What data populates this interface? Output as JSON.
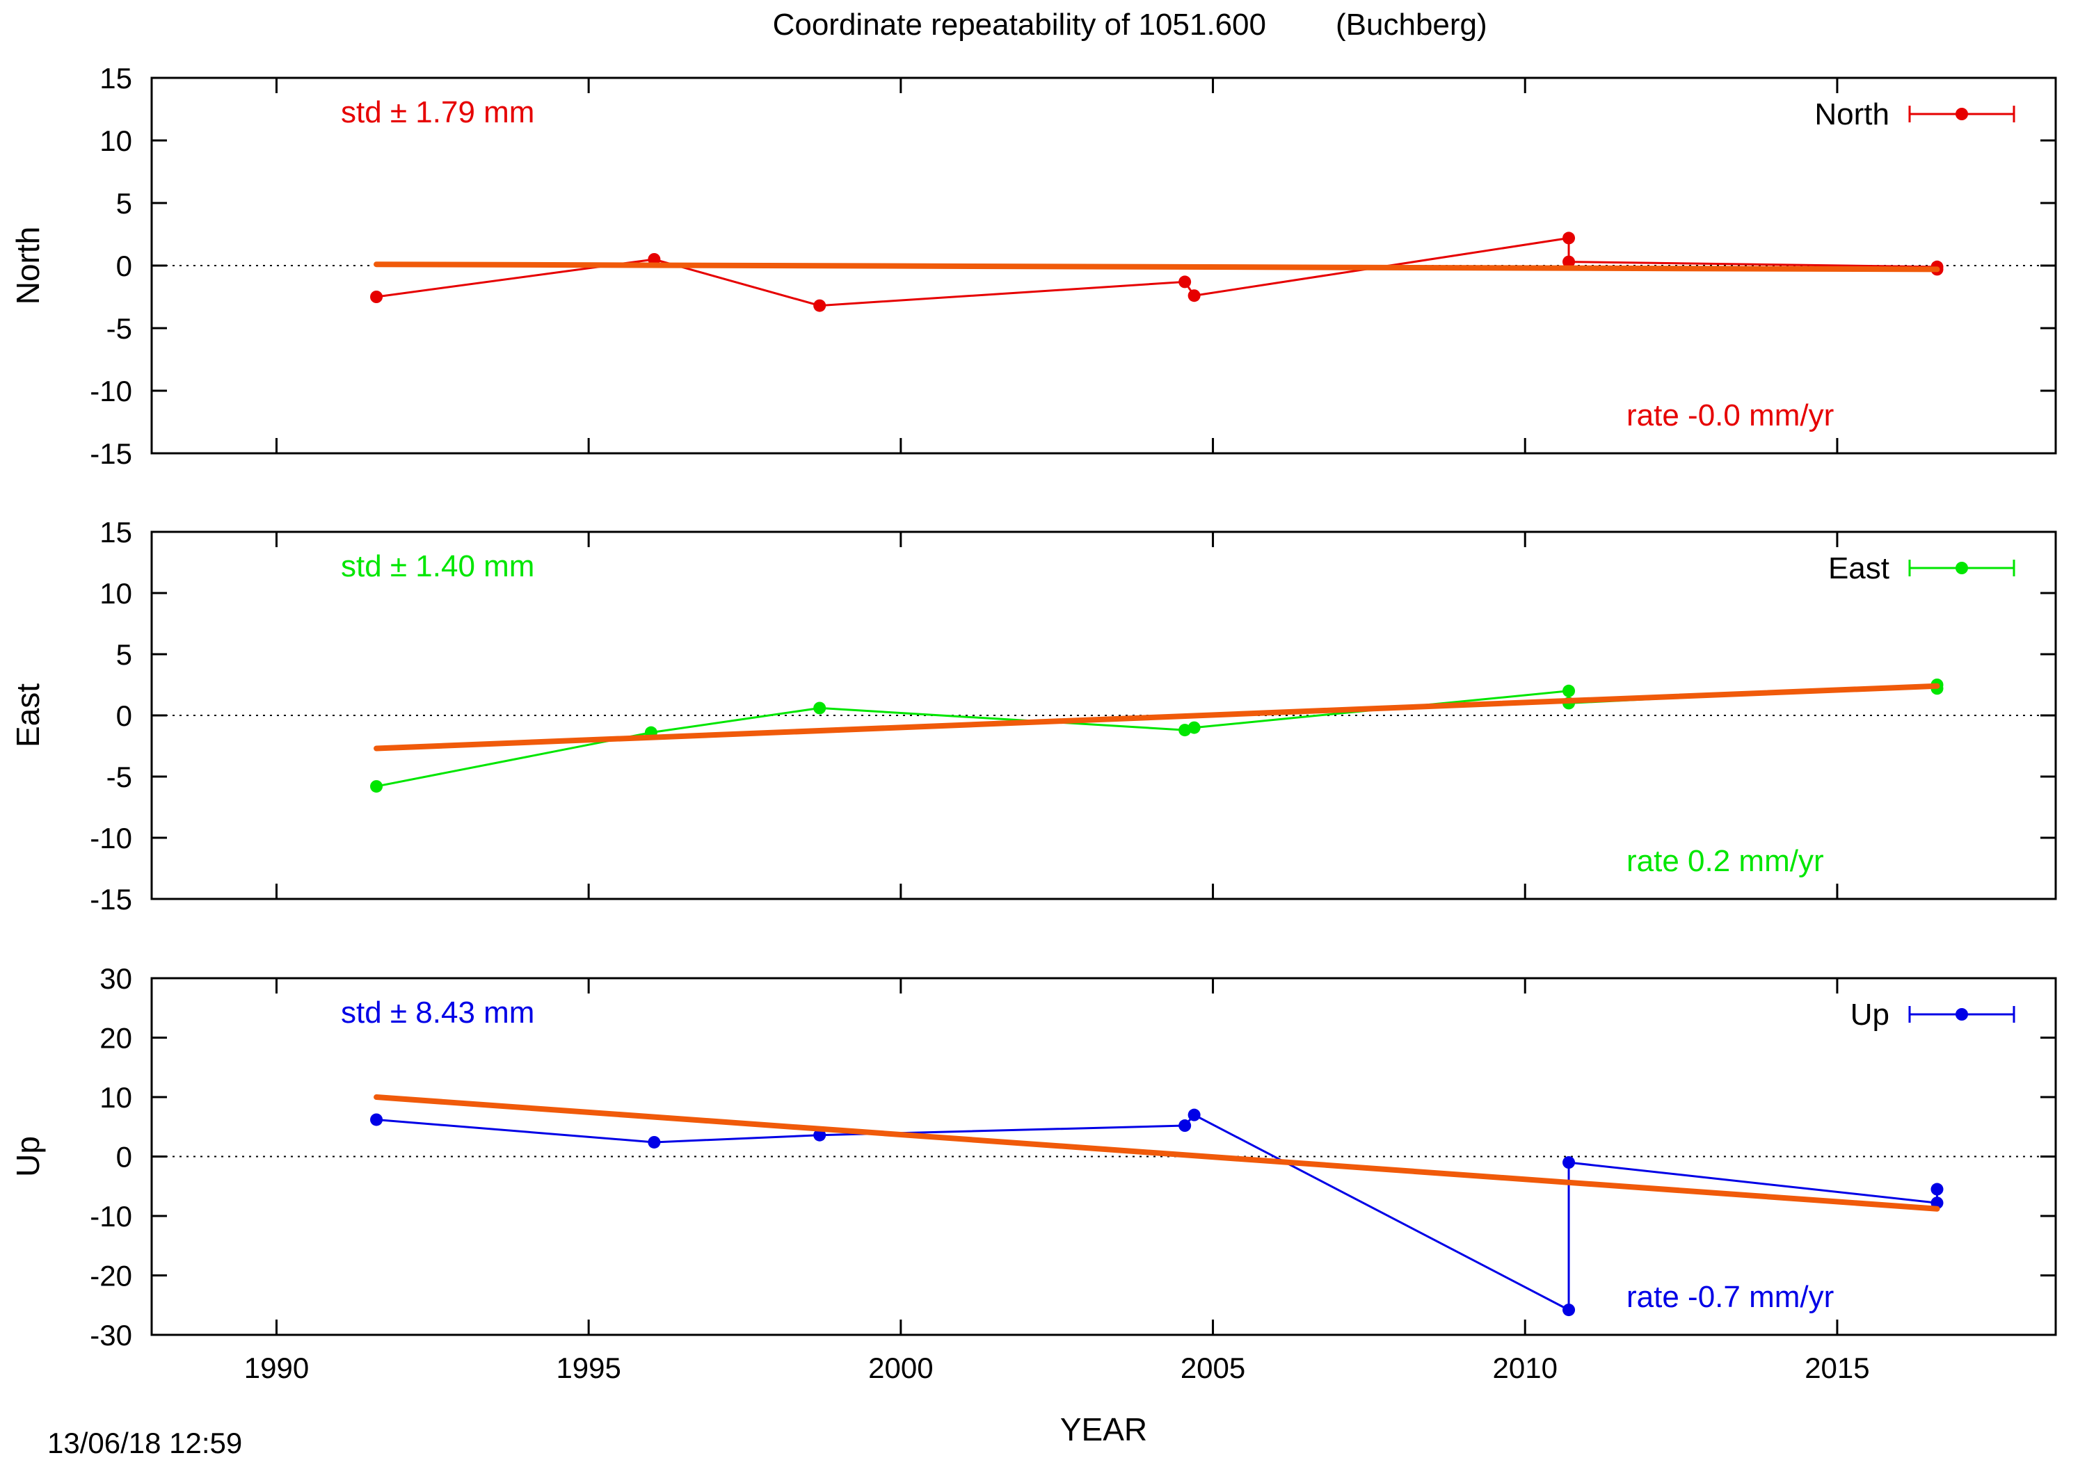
{
  "title": "Coordinate repeatability of 1051.600",
  "station": "(Buchberg)",
  "footer_timestamp": "13/06/18 12:59",
  "chart_data": [
    {
      "type": "line",
      "component": "North",
      "ylabel": "North",
      "xlabel": "",
      "xlim": [
        1988,
        2018.5
      ],
      "ylim": [
        -15,
        15
      ],
      "yticks": [
        15,
        10,
        5,
        0,
        -5,
        -10,
        -15
      ],
      "xticks": [
        1990,
        1995,
        2000,
        2005,
        2010,
        2015
      ],
      "color": "#e60000",
      "legend": "North",
      "legend_position": "top-right",
      "std_label": "std ± 1.79 mm",
      "rate_label": "rate -0.0 mm/yr",
      "series": [
        {
          "name": "North",
          "points": [
            {
              "x": 1991.6,
              "y": -2.5
            },
            {
              "x": 1996.05,
              "y": 0.5
            },
            {
              "x": 1998.7,
              "y": -3.2
            },
            {
              "x": 2004.55,
              "y": -1.3
            },
            {
              "x": 2004.7,
              "y": -2.4
            },
            {
              "x": 2010.7,
              "y": 2.2
            },
            {
              "x": 2010.7,
              "y": 0.3
            },
            {
              "x": 2016.6,
              "y": -0.1
            },
            {
              "x": 2016.6,
              "y": -0.3
            }
          ]
        }
      ],
      "trend": {
        "x": [
          1991.6,
          2016.6
        ],
        "y": [
          0.1,
          -0.3
        ]
      }
    },
    {
      "type": "line",
      "component": "East",
      "ylabel": "East",
      "xlabel": "",
      "xlim": [
        1988,
        2018.5
      ],
      "ylim": [
        -15,
        15
      ],
      "yticks": [
        15,
        10,
        5,
        0,
        -5,
        -10,
        -15
      ],
      "xticks": [
        1990,
        1995,
        2000,
        2005,
        2010,
        2015
      ],
      "color": "#00e600",
      "legend": "East",
      "legend_position": "top-right",
      "std_label": "std ± 1.40 mm",
      "rate_label": "rate  0.2 mm/yr",
      "series": [
        {
          "name": "East",
          "points": [
            {
              "x": 1991.6,
              "y": -5.8
            },
            {
              "x": 1996.0,
              "y": -1.4
            },
            {
              "x": 1998.7,
              "y": 0.6
            },
            {
              "x": 2004.55,
              "y": -1.2
            },
            {
              "x": 2004.7,
              "y": -1.0
            },
            {
              "x": 2010.7,
              "y": 2.0
            },
            {
              "x": 2010.7,
              "y": 1.0
            },
            {
              "x": 2016.6,
              "y": 2.5
            },
            {
              "x": 2016.6,
              "y": 2.2
            }
          ]
        }
      ],
      "trend": {
        "x": [
          1991.6,
          2016.6
        ],
        "y": [
          -2.7,
          2.4
        ]
      }
    },
    {
      "type": "line",
      "component": "Up",
      "ylabel": "Up",
      "xlabel": "YEAR",
      "xlim": [
        1988,
        2018.5
      ],
      "ylim": [
        -30,
        30
      ],
      "yticks": [
        30,
        20,
        10,
        0,
        -10,
        -20,
        -30
      ],
      "xticks": [
        1990,
        1995,
        2000,
        2005,
        2010,
        2015
      ],
      "color": "#0000e6",
      "legend": "Up",
      "legend_position": "top-right",
      "std_label": "std ± 8.43 mm",
      "rate_label": "rate -0.7 mm/yr",
      "series": [
        {
          "name": "Up",
          "points": [
            {
              "x": 1991.6,
              "y": 6.2
            },
            {
              "x": 1996.05,
              "y": 2.4
            },
            {
              "x": 1998.7,
              "y": 3.6
            },
            {
              "x": 2004.55,
              "y": 5.2
            },
            {
              "x": 2004.7,
              "y": 7.0
            },
            {
              "x": 2010.7,
              "y": -25.8
            },
            {
              "x": 2010.7,
              "y": -1.0
            },
            {
              "x": 2016.6,
              "y": -7.8
            },
            {
              "x": 2016.6,
              "y": -5.5
            }
          ]
        }
      ],
      "trend": {
        "x": [
          1991.6,
          2016.6
        ],
        "y": [
          10.0,
          -8.8
        ]
      }
    }
  ],
  "trend_color": "#f05a0a"
}
